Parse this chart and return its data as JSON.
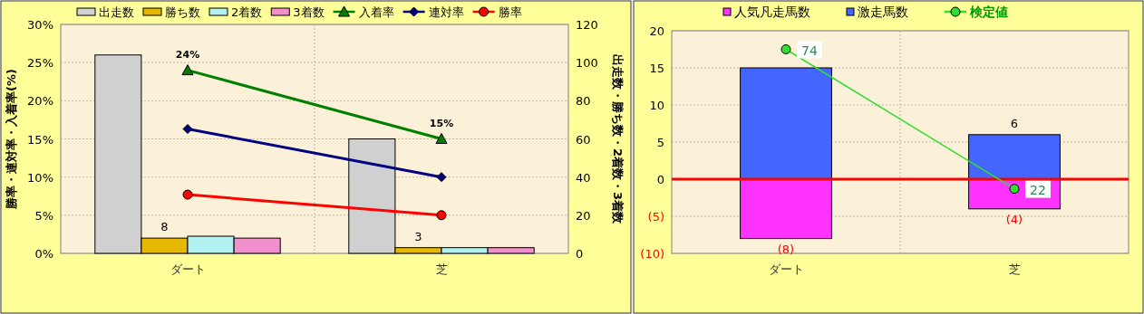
{
  "chart_data": [
    {
      "type": "bar",
      "categories": [
        "ダート",
        "芝"
      ],
      "ylabel": "勝率・連対率・入着率(%)",
      "y2label": "出走数・勝ち数・2着数・3着数",
      "ylim": [
        0,
        30
      ],
      "yticks": [
        {
          "value": 0,
          "label": "0%"
        },
        {
          "value": 5,
          "label": "5%"
        },
        {
          "value": 10,
          "label": "10%"
        },
        {
          "value": 15,
          "label": "15%"
        },
        {
          "value": 20,
          "label": "20%"
        },
        {
          "value": 25,
          "label": "25%"
        },
        {
          "value": 30,
          "label": "30%"
        }
      ],
      "y2lim": [
        0,
        120
      ],
      "y2ticks": [
        0,
        20,
        40,
        60,
        80,
        100,
        120
      ],
      "grid": true,
      "legend": "top",
      "series": [
        {
          "name": "出走数",
          "color": "#d0d0d0",
          "axis": "y2",
          "values": [
            104,
            60
          ]
        },
        {
          "name": "勝ち数",
          "color": "#e6b800",
          "axis": "y2",
          "values": [
            8,
            3
          ],
          "value_labels": [
            "8",
            "3"
          ]
        },
        {
          "name": "2着数",
          "color": "#b3f0f0",
          "axis": "y2",
          "values": [
            9,
            3
          ]
        },
        {
          "name": "3着数",
          "color": "#f090cc",
          "axis": "y2",
          "values": [
            8,
            3
          ]
        },
        {
          "name": "入着率",
          "type": "line",
          "color": "#008000",
          "marker": "triangle",
          "values": [
            24,
            15
          ],
          "value_labels": [
            "24%",
            "15%"
          ]
        },
        {
          "name": "連対率",
          "type": "line",
          "color": "#000080",
          "marker": "diamond",
          "values": [
            16.3,
            10
          ]
        },
        {
          "name": "勝率",
          "type": "line",
          "color": "#ff0000",
          "marker": "circle",
          "values": [
            7.7,
            5
          ]
        }
      ]
    },
    {
      "type": "bar",
      "stacked": true,
      "categories": [
        "ダート",
        "芝"
      ],
      "ylim": [
        -10,
        20
      ],
      "yticks": [
        {
          "value": -10,
          "label": "(10)"
        },
        {
          "value": -5,
          "label": "(5)"
        },
        0,
        5,
        10,
        15,
        20
      ],
      "grid": true,
      "legend": "top",
      "ref_lines": [
        {
          "axis": "y",
          "value": 0,
          "color": "#ff0000"
        }
      ],
      "annotations": [
        {
          "text": "74",
          "x": "ダート",
          "y": 17.5
        },
        {
          "text": "22",
          "x": "芝",
          "y": -1.3
        }
      ],
      "series": [
        {
          "name": "人気凡走馬数",
          "color": "#ff33ff",
          "values": [
            -8,
            -4
          ],
          "value_labels": [
            "(8)",
            "(4)"
          ]
        },
        {
          "name": "激走馬数",
          "color": "#4466ff",
          "values": [
            15,
            6
          ],
          "value_labels": [
            null,
            "6"
          ]
        },
        {
          "name": "検定値",
          "type": "line",
          "color": "#33dd33",
          "marker": "circle",
          "values": [
            17.5,
            -1.3
          ]
        }
      ]
    }
  ]
}
